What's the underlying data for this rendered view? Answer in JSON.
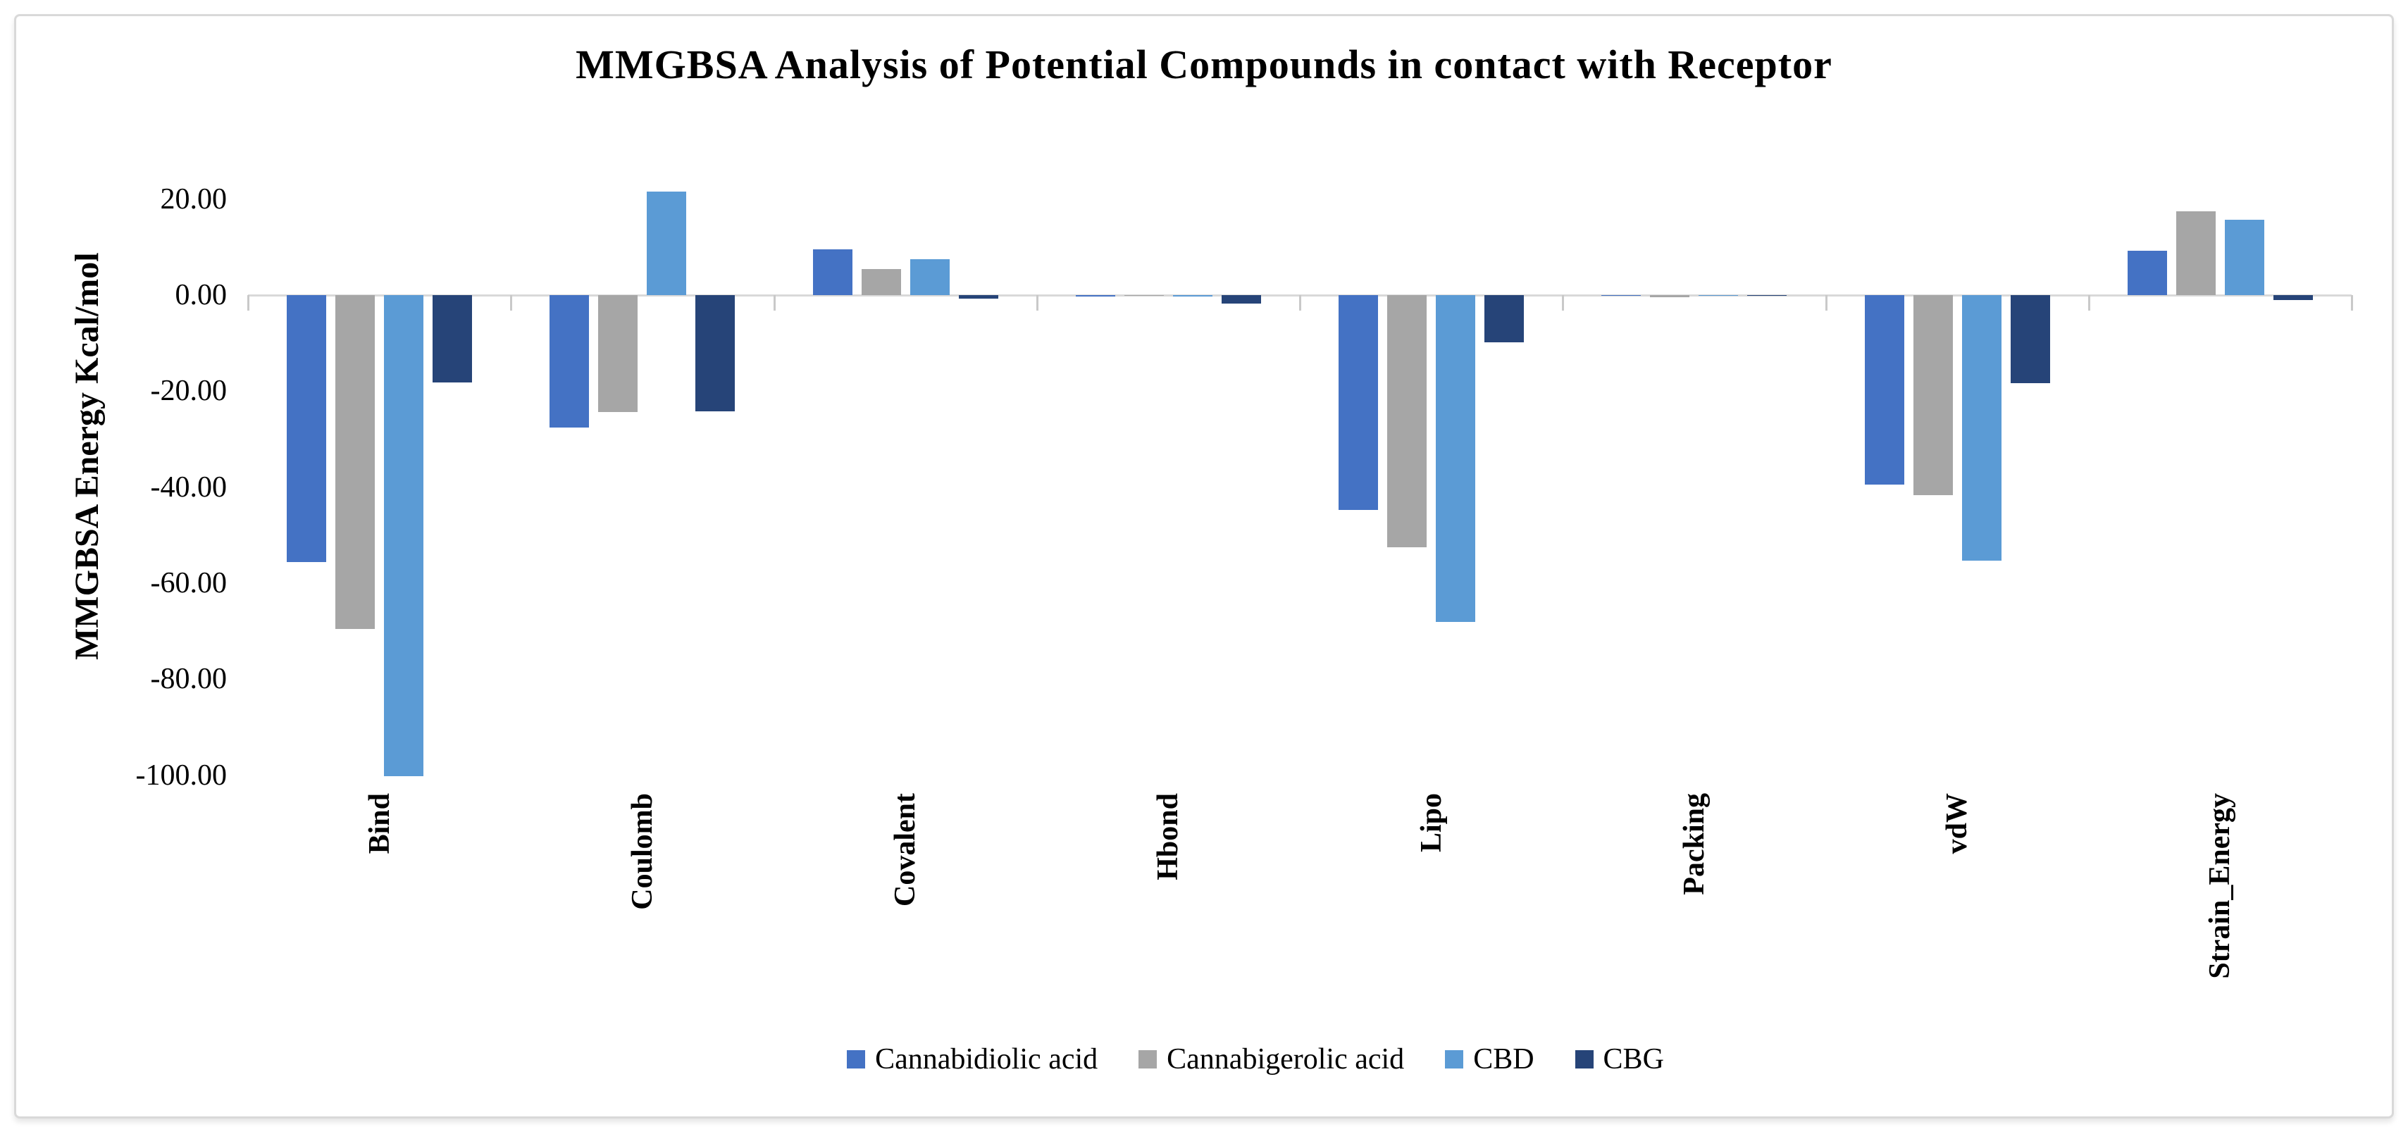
{
  "figure": {
    "title": "MMGBSA Analysis of Potential Compounds in contact with Receptor"
  },
  "chart_data": {
    "type": "bar",
    "title": "MMGBSA Analysis of Potential Compounds in contact with Receptor",
    "xlabel": "",
    "ylabel": "MMGBSA Energy Kcal/mol",
    "ylim": [
      -105,
      22
    ],
    "grid": false,
    "legend_position": "bottom",
    "axis_line_color": "#d9d9d9",
    "yticks": [
      {
        "label": "20.00",
        "value": 20
      },
      {
        "label": "0.00",
        "value": 0
      },
      {
        "label": "-20.00",
        "value": -20
      },
      {
        "label": "-40.00",
        "value": -40
      },
      {
        "label": "-60.00",
        "value": -60
      },
      {
        "label": "-80.00",
        "value": -80
      },
      {
        "label": "-100.00",
        "value": -100
      }
    ],
    "categories": [
      "Bind",
      "Coulomb",
      "Covalent",
      "Hbond",
      "Lipo",
      "Packing",
      "vdW",
      "Strain_Energy"
    ],
    "series": [
      {
        "name": "Cannabidiolic acid",
        "color": "#4472C4",
        "values": [
          -55.6,
          -27.6,
          9.6,
          -0.3,
          -44.8,
          -0.2,
          -39.5,
          9.3
        ]
      },
      {
        "name": "Cannabigerolic acid",
        "color": "#A6A6A6",
        "values": [
          -69.5,
          -24.3,
          5.5,
          -0.1,
          -52.5,
          -0.5,
          -41.7,
          17.5
        ]
      },
      {
        "name": "CBD",
        "color": "#5B9BD5",
        "values": [
          -100.2,
          21.5,
          7.5,
          -0.3,
          -68.0,
          -0.2,
          -55.3,
          15.7
        ]
      },
      {
        "name": "CBG",
        "color": "#264478",
        "values": [
          -18.2,
          -24.2,
          -0.7,
          -1.7,
          -9.8,
          -0.1,
          -18.4,
          -1.0
        ]
      }
    ]
  }
}
